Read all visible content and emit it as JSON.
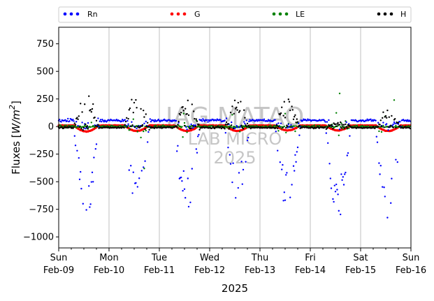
{
  "chart_data": {
    "type": "scatter",
    "title": "",
    "xlabel": "2025",
    "ylabel": "Fluxes [W/m²]",
    "ylabel_parts": {
      "main": "Fluxes [",
      "unit": "W/m",
      "sup": "2",
      "close": "]"
    },
    "ylim": [
      -1100,
      900
    ],
    "yticks": [
      -1000,
      -750,
      -500,
      -250,
      0,
      250,
      500,
      750
    ],
    "xlim_days": [
      0,
      7
    ],
    "xticks": [
      {
        "day": 0,
        "weekday": "Sun",
        "date": "Feb-09"
      },
      {
        "day": 1,
        "weekday": "Mon",
        "date": "Feb-10"
      },
      {
        "day": 2,
        "weekday": "Tue",
        "date": "Feb-11"
      },
      {
        "day": 3,
        "weekday": "Wed",
        "date": "Feb-12"
      },
      {
        "day": 4,
        "weekday": "Thu",
        "date": "Feb-13"
      },
      {
        "day": 5,
        "weekday": "Fri",
        "date": "Feb-14"
      },
      {
        "day": 6,
        "weekday": "Sat",
        "date": "Feb-15"
      },
      {
        "day": 7,
        "weekday": "Sun",
        "date": "Feb-16"
      }
    ],
    "grid": "vertical",
    "legend_position": "top",
    "watermark": [
      "IAG MATAO",
      "LAB MICRO",
      "2025"
    ],
    "series": [
      {
        "name": "Rn",
        "color": "#0000ff",
        "description": "near +40 to +70 at night, deep negative daytime dips to about -830",
        "night_level": 55,
        "day_min": [
          -790,
          -760,
          -780,
          -660,
          -750,
          -810,
          -840
        ]
      },
      {
        "name": "G",
        "color": "#ff0000",
        "description": "small daily oscillation around 0, minimum about -45",
        "night_level": 10,
        "day_min": [
          -45,
          -40,
          -40,
          -40,
          -35,
          -35,
          -40
        ]
      },
      {
        "name": "LE",
        "color": "#008000",
        "description": "scattered around 0 with occasional spikes to +300 / -380",
        "night_level": 0
      },
      {
        "name": "H",
        "color": "#000000",
        "description": "near 0 at night, daytime peaks to about +330",
        "night_level": -10,
        "day_max": [
          320,
          330,
          240,
          280,
          250,
          50,
          170
        ]
      }
    ]
  }
}
